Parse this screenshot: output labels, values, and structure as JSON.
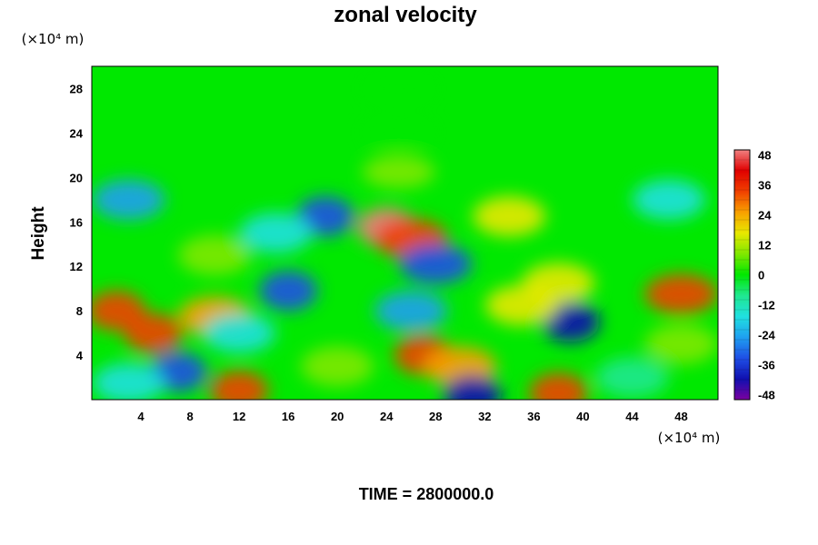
{
  "chart_data": {
    "type": "heatmap",
    "title": "zonal velocity",
    "ylabel": "Height",
    "xlabel": "",
    "x_unit": "(×10⁴ m)",
    "y_unit": "(×10⁴ m)",
    "x_ticks": [
      4,
      8,
      12,
      16,
      20,
      24,
      28,
      32,
      36,
      40,
      44,
      48
    ],
    "y_ticks": [
      4,
      8,
      12,
      16,
      20,
      24,
      28
    ],
    "xlim": [
      0,
      51
    ],
    "ylim": [
      0,
      30
    ],
    "colorbar": {
      "ticks": [
        48,
        36,
        24,
        12,
        0,
        -12,
        -24,
        -36,
        -48
      ],
      "range": [
        -50,
        50
      ],
      "colors_low_to_high": [
        "#7a00a0",
        "#1010b0",
        "#1f4fe6",
        "#1fa0f0",
        "#20e0e0",
        "#20e890",
        "#00e800",
        "#80e800",
        "#e8e800",
        "#f8a000",
        "#f04000",
        "#e00000",
        "#f08080"
      ]
    },
    "features": [
      {
        "x": 25,
        "y": 28,
        "value": 1
      },
      {
        "x": 25,
        "y": 24,
        "value": 3
      },
      {
        "x": 25,
        "y": 20.5,
        "value": 10
      },
      {
        "x": 3,
        "y": 18,
        "value": -22
      },
      {
        "x": 47,
        "y": 18,
        "value": -20
      },
      {
        "x": 34,
        "y": 16.5,
        "value": 20
      },
      {
        "x": 19,
        "y": 16.5,
        "value": -34
      },
      {
        "x": 24,
        "y": 15.5,
        "value": 46
      },
      {
        "x": 26,
        "y": 14.5,
        "value": 30
      },
      {
        "x": 15,
        "y": 15,
        "value": -15
      },
      {
        "x": 10,
        "y": 13,
        "value": 8
      },
      {
        "x": 28,
        "y": 12.2,
        "value": -30
      },
      {
        "x": 16,
        "y": 9.8,
        "value": -34
      },
      {
        "x": 38,
        "y": 10.5,
        "value": 16
      },
      {
        "x": 2,
        "y": 8,
        "value": 34
      },
      {
        "x": 5,
        "y": 6,
        "value": 34
      },
      {
        "x": 10,
        "y": 7.5,
        "value": 22
      },
      {
        "x": 12,
        "y": 6,
        "value": -20
      },
      {
        "x": 26,
        "y": 8,
        "value": -28
      },
      {
        "x": 39,
        "y": 7,
        "value": -38
      },
      {
        "x": 35,
        "y": 8.5,
        "value": 14
      },
      {
        "x": 48,
        "y": 9.5,
        "value": 30
      },
      {
        "x": 48,
        "y": 5,
        "value": 12
      },
      {
        "x": 27,
        "y": 4,
        "value": 32
      },
      {
        "x": 30,
        "y": 3,
        "value": 22
      },
      {
        "x": 7,
        "y": 2.5,
        "value": -36
      },
      {
        "x": 3,
        "y": 1.5,
        "value": -18
      },
      {
        "x": 12,
        "y": 0.8,
        "value": 34
      },
      {
        "x": 31,
        "y": 0.4,
        "value": -38
      },
      {
        "x": 38,
        "y": 0.6,
        "value": 36
      },
      {
        "x": 20,
        "y": 3,
        "value": 12
      },
      {
        "x": 44,
        "y": 2,
        "value": -10
      }
    ]
  },
  "caption": "TIME = 2800000.0"
}
